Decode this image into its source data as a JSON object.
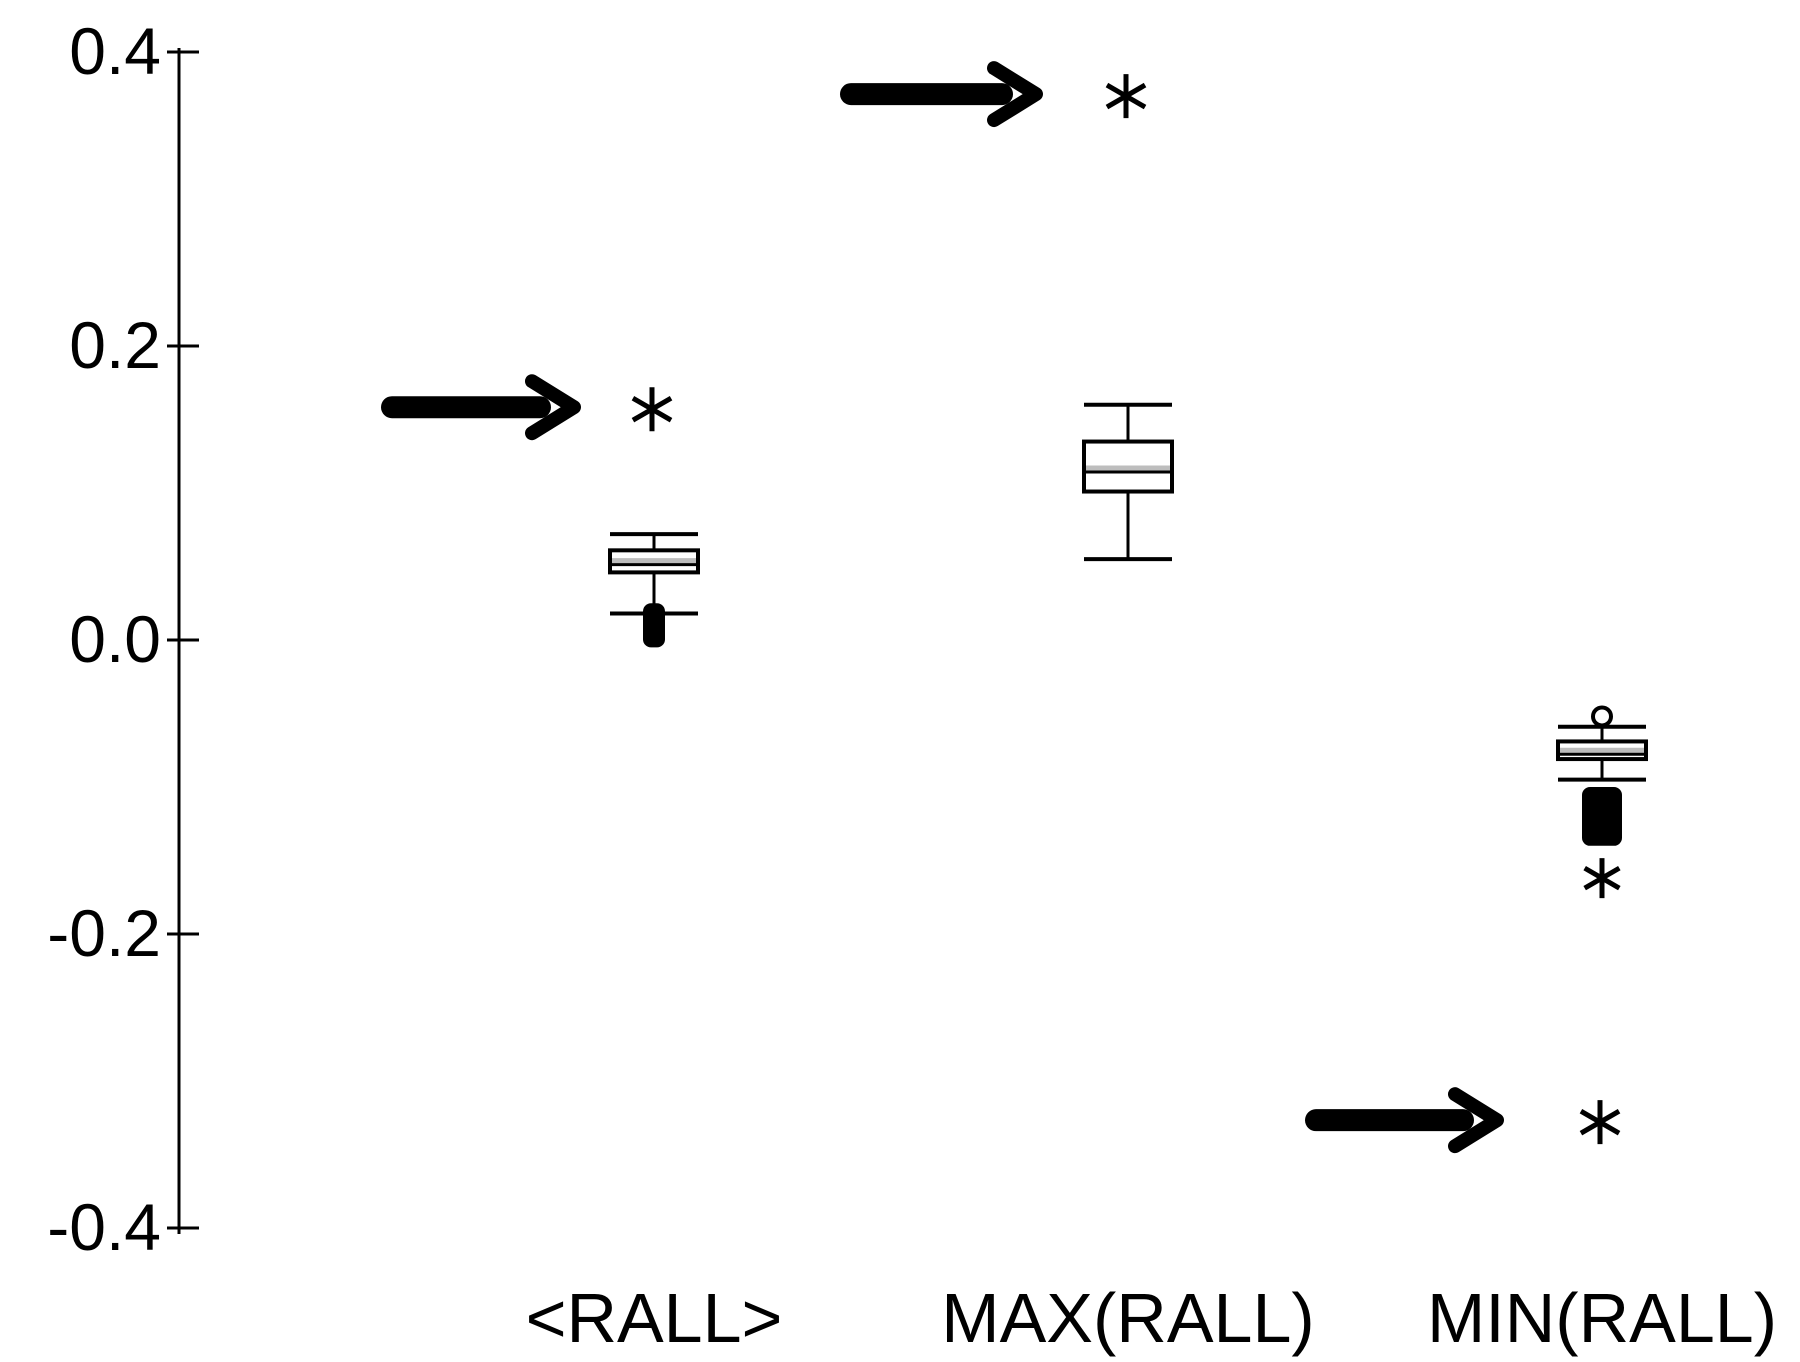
{
  "chart_data": {
    "type": "boxplot",
    "title": "",
    "xlabel": "",
    "ylabel": "",
    "ylim": [
      -0.4,
      0.4
    ],
    "yticks": [
      0.4,
      0.2,
      0.0,
      -0.2,
      -0.4
    ],
    "ytick_labels": [
      "0.4",
      "0.2",
      "0.0",
      "-0.2",
      "-0.4"
    ],
    "grid": false,
    "legend": "none",
    "categories": [
      "<RALL>",
      "MAX(RALL)",
      "MIN(RALL)"
    ],
    "boxes": [
      {
        "category": "<RALL>",
        "whisker_low": 0.018,
        "q1": 0.046,
        "median": 0.054,
        "q3": 0.061,
        "whisker_high": 0.072,
        "outlier_range": [
          -0.005,
          0.025
        ],
        "marked_value": 0.157
      },
      {
        "category": "MAX(RALL)",
        "whisker_low": 0.055,
        "q1": 0.101,
        "median": 0.117,
        "q3": 0.135,
        "whisker_high": 0.16,
        "marked_value": 0.37
      },
      {
        "category": "MIN(RALL)",
        "whisker_low": -0.095,
        "q1": -0.081,
        "median": -0.075,
        "q3": -0.069,
        "whisker_high": -0.059,
        "outlier_high": -0.052,
        "outlier_range": [
          -0.14,
          -0.1
        ],
        "extra_outlier": -0.162,
        "marked_value": -0.328
      }
    ],
    "colors": {
      "axis": "#000000",
      "box_stroke": "#000000",
      "median": "#bdbdbd",
      "marker": "#000000"
    }
  }
}
